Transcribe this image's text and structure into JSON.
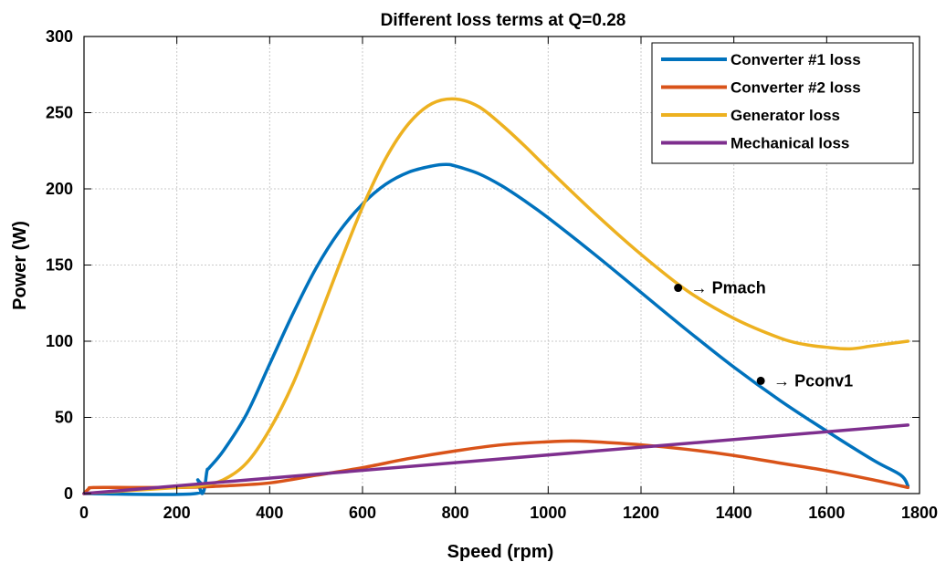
{
  "chart_data": {
    "type": "line",
    "title": "Different loss terms at Q=0.28",
    "xlabel": "Speed (rpm)",
    "ylabel": "Power (W)",
    "xlim": [
      0,
      1800
    ],
    "ylim": [
      0,
      300
    ],
    "xticks": [
      0,
      200,
      400,
      600,
      800,
      1000,
      1200,
      1400,
      1600,
      1800
    ],
    "yticks": [
      0,
      50,
      100,
      150,
      200,
      250,
      300
    ],
    "grid": true,
    "legend_position": "top-right",
    "series": [
      {
        "name": "Converter #1 loss",
        "color": "#0072BD",
        "x": [
          0,
          240,
          245,
          250,
          255,
          260,
          265,
          270,
          300,
          350,
          400,
          450,
          500,
          550,
          600,
          650,
          700,
          750,
          780,
          800,
          850,
          900,
          950,
          1000,
          1100,
          1200,
          1300,
          1400,
          1500,
          1600,
          1700,
          1760,
          1775
        ],
        "y": [
          0,
          0,
          9,
          3,
          0,
          4,
          15,
          17,
          28,
          52,
          85,
          118,
          148,
          172,
          190,
          203,
          211,
          215,
          216,
          215,
          210,
          202,
          192,
          181,
          157,
          132,
          107,
          83,
          61,
          41,
          22,
          12,
          5
        ]
      },
      {
        "name": "Converter #2 loss",
        "color": "#D95319",
        "x": [
          0,
          10,
          20,
          100,
          200,
          260,
          300,
          400,
          500,
          600,
          700,
          800,
          900,
          1000,
          1050,
          1100,
          1200,
          1300,
          1400,
          1500,
          1600,
          1700,
          1775
        ],
        "y": [
          0,
          3,
          4,
          4,
          4,
          4.5,
          5,
          7,
          12,
          17,
          23,
          28,
          32,
          34,
          34.5,
          34,
          32,
          29,
          25,
          20,
          15,
          9,
          4
        ]
      },
      {
        "name": "Generator loss",
        "color": "#EDB120",
        "x": [
          0,
          100,
          200,
          250,
          300,
          350,
          400,
          450,
          500,
          550,
          600,
          650,
          700,
          750,
          800,
          850,
          900,
          950,
          1000,
          1100,
          1200,
          1300,
          1400,
          1500,
          1550,
          1600,
          1650,
          1700,
          1775
        ],
        "y": [
          0,
          2,
          4,
          5,
          9,
          20,
          42,
          72,
          110,
          150,
          188,
          220,
          243,
          256,
          259,
          254,
          242,
          228,
          213,
          184,
          157,
          133,
          115,
          102,
          98,
          96,
          95,
          97,
          100
        ]
      },
      {
        "name": "Mechanical loss",
        "color": "#7E2F8E",
        "x": [
          0,
          1775
        ],
        "y": [
          0,
          45
        ]
      }
    ],
    "annotations": [
      {
        "label": "→ Pmach",
        "x": 1280,
        "y": 135
      },
      {
        "label": "→ Pconv1",
        "x": 1458,
        "y": 74
      }
    ]
  }
}
